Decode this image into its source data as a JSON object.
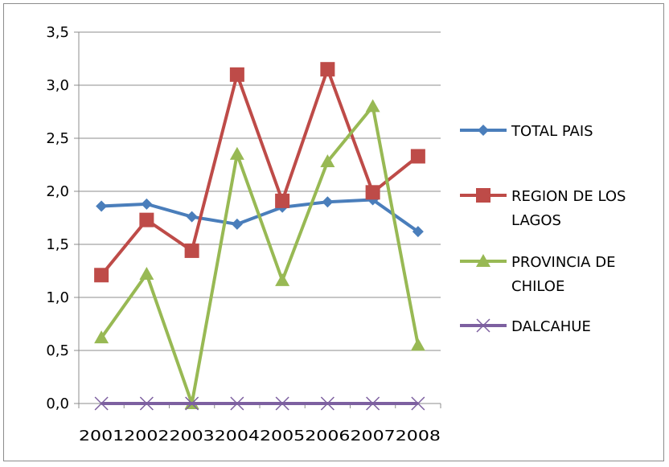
{
  "chart_data": {
    "type": "line",
    "categories": [
      "2001",
      "2002",
      "2003",
      "2004",
      "2005",
      "2006",
      "2007",
      "2008"
    ],
    "y_ticks": [
      "0,0",
      "0,5",
      "1,0",
      "1,5",
      "2,0",
      "2,5",
      "3,0",
      "3,5"
    ],
    "ylim": [
      0,
      3.5
    ],
    "grid": true,
    "legend_position": "right",
    "series": [
      {
        "name": "TOTAL PAIS",
        "name_lines": [
          "TOTAL PAIS"
        ],
        "color": "#4a7ebb",
        "marker": "diamond",
        "values": [
          1.86,
          1.88,
          1.76,
          1.69,
          1.85,
          1.9,
          1.92,
          1.62
        ]
      },
      {
        "name": "REGION DE LOS LAGOS",
        "name_lines": [
          "REGION DE LOS",
          "LAGOS"
        ],
        "color": "#be4b48",
        "marker": "square",
        "values": [
          1.21,
          1.73,
          1.44,
          3.1,
          1.91,
          3.15,
          1.99,
          2.33
        ]
      },
      {
        "name": "PROVINCIA DE CHILOE",
        "name_lines": [
          "PROVINCIA DE",
          "CHILOE"
        ],
        "color": "#98b954",
        "marker": "triangle",
        "values": [
          0.62,
          1.22,
          0.0,
          2.35,
          1.16,
          2.28,
          2.8,
          0.55
        ]
      },
      {
        "name": "DALCAHUE",
        "name_lines": [
          "DALCAHUE"
        ],
        "color": "#7d60a0",
        "marker": "x",
        "values": [
          0,
          0,
          0,
          0,
          0,
          0,
          0,
          0
        ]
      }
    ]
  }
}
